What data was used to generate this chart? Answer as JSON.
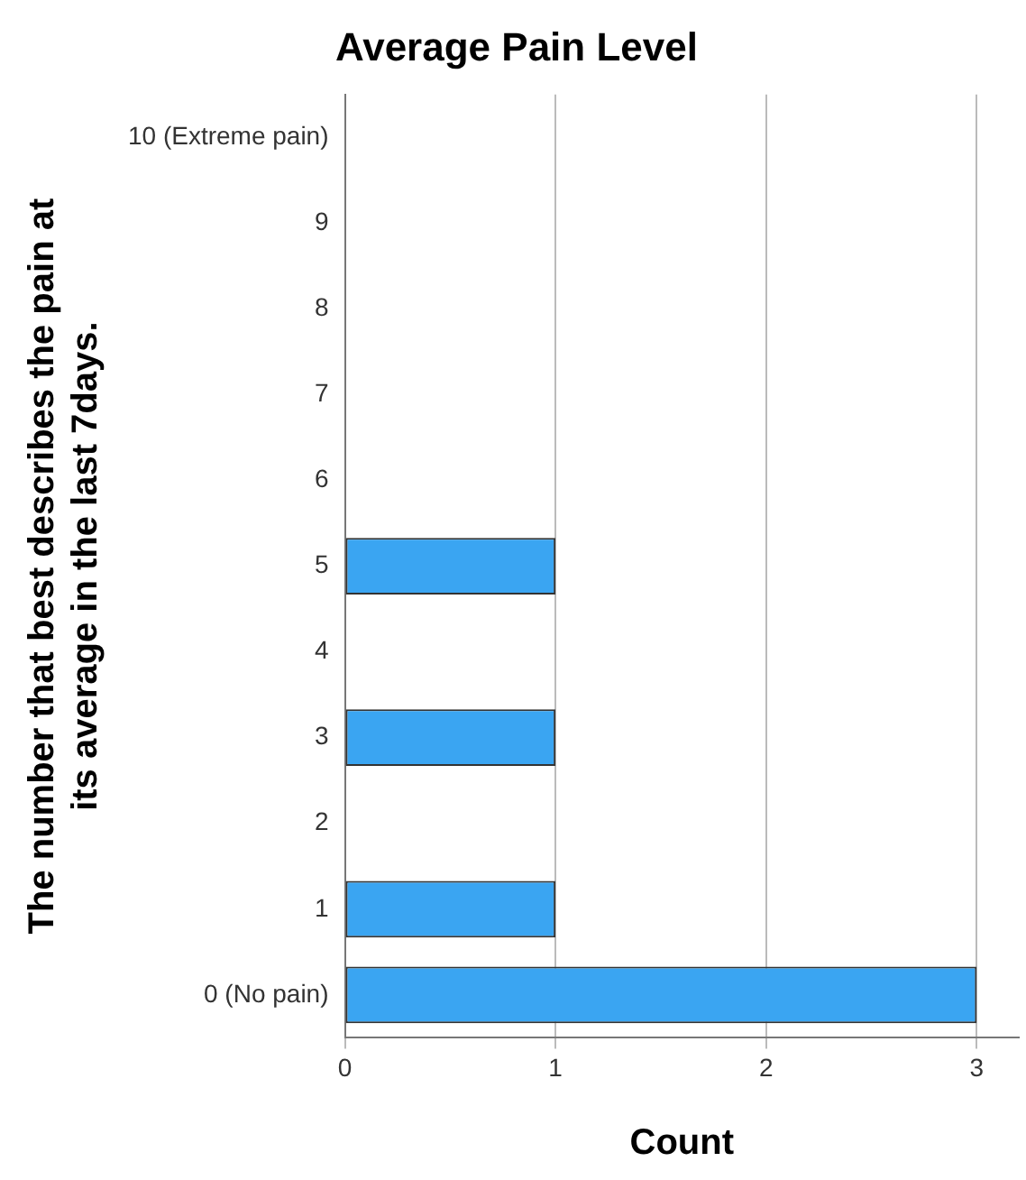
{
  "chart_data": {
    "type": "bar",
    "orientation": "horizontal",
    "title": "Average Pain Level",
    "xlabel": "Count",
    "ylabel": "The number that best describes the pain at its average in the last 7days.",
    "categories": [
      "10 (Extreme pain)",
      "9",
      "8",
      "7",
      "6",
      "5",
      "4",
      "3",
      "2",
      "1",
      "0 (No pain)"
    ],
    "values": [
      0,
      0,
      0,
      0,
      0,
      1,
      0,
      1,
      0,
      1,
      3
    ],
    "color": "#3aa5f2",
    "xlim": [
      0,
      3.2
    ],
    "xticks": [
      0,
      1,
      2,
      3
    ],
    "grid": "x",
    "legend": false
  }
}
